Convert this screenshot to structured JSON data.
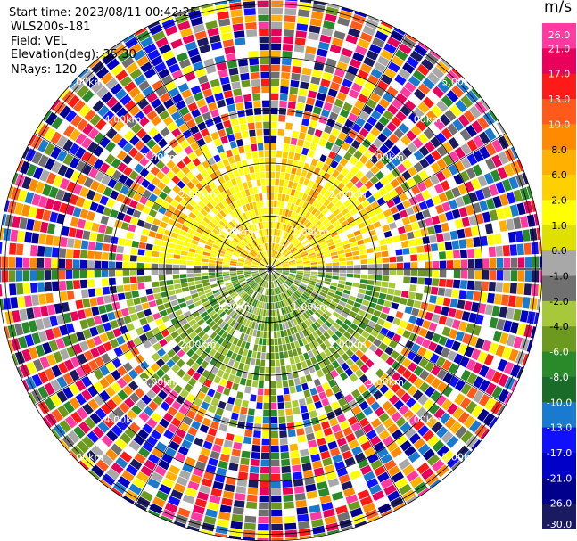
{
  "header": {
    "start_time": "Start time: 2023/08/11 00:42:25",
    "instrument": "WLS200s-181",
    "field": "Field: VEL",
    "elevation": "Elevation(deg): 35.30",
    "nrays": "NRays: 120"
  },
  "colorbar": {
    "unit": "m/s",
    "ticks": [
      "26.0",
      "21.0",
      "17.0",
      "13.0",
      "10.0",
      "8.0",
      "6.0",
      "2.0",
      "1.0",
      "0.0",
      "-1.0",
      "-2.0",
      "-4.0",
      "-6.0",
      "-8.0",
      "-10.0",
      "-13.0",
      "-17.0",
      "-21.0",
      "-26.0",
      "-30.0"
    ],
    "colors": [
      "#ff3aa0",
      "#e8005c",
      "#ff1a1a",
      "#ff5a1a",
      "#ff8a00",
      "#ffb000",
      "#ffd000",
      "#ffff00",
      "#e0e000",
      "#a8a8a8",
      "#707070",
      "#a8c83c",
      "#6c9a1e",
      "#2a8a2a",
      "#1a6a2a",
      "#1a7ad0",
      "#1010ff",
      "#0000c8",
      "#00008c",
      "#1a1a60"
    ]
  },
  "chart_data": {
    "type": "heatmap",
    "projection": "polar PPI",
    "field": "VEL",
    "units": "m/s",
    "nrays": 120,
    "elevation_deg": 35.3,
    "range_rings_km": [
      1.0,
      2.0,
      3.0,
      4.0,
      5.0
    ],
    "ring_labels": [
      "1.00km",
      "2.00km",
      "3.00km",
      "4.00km",
      "5.00km"
    ],
    "spokes_deg": [
      0,
      30,
      60,
      90,
      120,
      150,
      180,
      210,
      240,
      270,
      300,
      330
    ],
    "color_scale_ms": [
      -30,
      -26,
      -21,
      -17,
      -13,
      -10,
      -8,
      -6,
      -4,
      -2,
      -1,
      0,
      1,
      2,
      6,
      8,
      10,
      13,
      17,
      21,
      26
    ],
    "pattern": "positive (yellow/orange) velocities in northern half near center, negative (green) in southern half, mixed noise beyond 2 km"
  }
}
